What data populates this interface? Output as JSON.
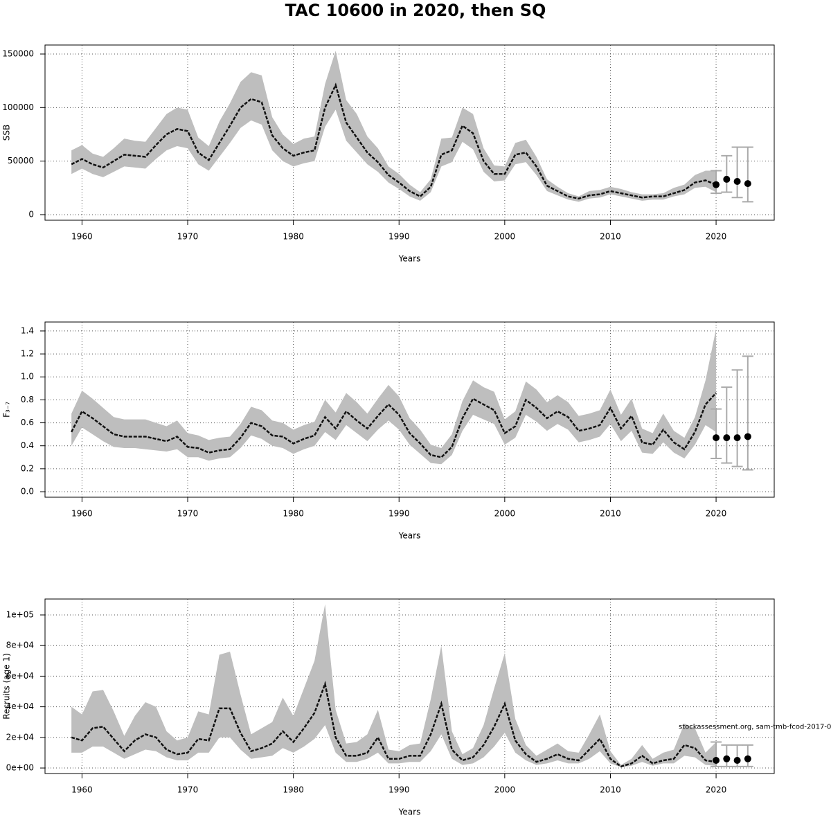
{
  "title": "TAC 10600 in 2020, then SQ",
  "chart_data": [
    {
      "type": "line",
      "ylabel": "SSB",
      "xlabel": "Years",
      "grid": true,
      "xlim": [
        1956.5,
        2025.5
      ],
      "xticks": [
        1960,
        1970,
        1980,
        1990,
        2000,
        2010,
        2020
      ],
      "ylim": [
        -5200,
        158400
      ],
      "yticks": [
        0,
        50000,
        100000,
        150000
      ],
      "band_color": "#bebebe",
      "line_color": "#111111",
      "point_color": "#000000",
      "error_color": "#aaaaaa",
      "x": [
        1959,
        1960,
        1961,
        1962,
        1963,
        1964,
        1965,
        1966,
        1967,
        1968,
        1969,
        1970,
        1971,
        1972,
        1973,
        1974,
        1975,
        1976,
        1977,
        1978,
        1979,
        1980,
        1981,
        1982,
        1983,
        1984,
        1985,
        1986,
        1987,
        1988,
        1989,
        1990,
        1991,
        1992,
        1993,
        1994,
        1995,
        1996,
        1997,
        1998,
        1999,
        2000,
        2001,
        2002,
        2003,
        2004,
        2005,
        2006,
        2007,
        2008,
        2009,
        2010,
        2011,
        2012,
        2013,
        2014,
        2015,
        2016,
        2017,
        2018,
        2019,
        2020
      ],
      "values": [
        47000,
        52000,
        47000,
        44000,
        50000,
        56000,
        55000,
        54000,
        65000,
        75000,
        80000,
        78000,
        58000,
        51000,
        67000,
        83000,
        100000,
        108000,
        105000,
        74000,
        62000,
        55000,
        58000,
        60000,
        100000,
        121000,
        86000,
        72000,
        58000,
        49000,
        37000,
        30000,
        22000,
        17000,
        26000,
        56000,
        60000,
        83000,
        76000,
        50000,
        38000,
        38000,
        56000,
        58000,
        45000,
        27000,
        22000,
        17000,
        15000,
        18000,
        19000,
        22000,
        20000,
        18000,
        16000,
        17000,
        17000,
        20000,
        23000,
        30000,
        32000,
        28000
      ],
      "lower": [
        38000,
        43000,
        38000,
        35000,
        40000,
        45000,
        44000,
        43000,
        52000,
        60000,
        64000,
        62000,
        47000,
        41000,
        54000,
        67000,
        81000,
        88000,
        84000,
        60000,
        50000,
        45000,
        48000,
        50000,
        82000,
        98000,
        69000,
        58000,
        47000,
        40000,
        30000,
        24000,
        17000,
        13000,
        21000,
        45000,
        49000,
        68000,
        61000,
        40000,
        31000,
        32000,
        47000,
        49000,
        37000,
        22000,
        18000,
        14000,
        12000,
        15000,
        16000,
        19000,
        17000,
        15000,
        13000,
        14000,
        14000,
        17000,
        19000,
        25000,
        26000,
        21000
      ],
      "upper": [
        60000,
        65000,
        57000,
        54000,
        62000,
        71000,
        69000,
        68000,
        81000,
        94000,
        100000,
        98000,
        72000,
        64000,
        87000,
        104000,
        124000,
        133000,
        130000,
        91000,
        75000,
        66000,
        71000,
        73000,
        122000,
        153000,
        107000,
        94000,
        73000,
        62000,
        45000,
        38000,
        28000,
        21000,
        33000,
        71000,
        72000,
        100000,
        94000,
        62000,
        46000,
        45000,
        67000,
        70000,
        54000,
        33000,
        26000,
        20000,
        17000,
        22000,
        23000,
        26000,
        24000,
        21000,
        19000,
        19000,
        20000,
        25000,
        28000,
        37000,
        41000,
        41000
      ],
      "forecast": {
        "x": [
          2020,
          2021,
          2022,
          2023
        ],
        "values": [
          28000,
          33000,
          31000,
          29000
        ],
        "lower": [
          20000,
          21000,
          16000,
          12000
        ],
        "upper": [
          41000,
          55000,
          63000,
          63000
        ]
      }
    },
    {
      "type": "line",
      "ylabel": "F₃₋₇",
      "xlabel": "Years",
      "grid": true,
      "xlim": [
        1956.5,
        2025.5
      ],
      "xticks": [
        1960,
        1970,
        1980,
        1990,
        2000,
        2010,
        2020
      ],
      "ylim": [
        -0.048,
        1.478
      ],
      "yticks": [
        {
          "value": 0,
          "label": "0.0"
        },
        0.2,
        0.4,
        0.6,
        0.8,
        {
          "value": 1,
          "label": "1.0"
        },
        1.2,
        1.4
      ],
      "band_color": "#bebebe",
      "line_color": "#111111",
      "point_color": "#000000",
      "error_color": "#aaaaaa",
      "x": [
        1959,
        1960,
        1961,
        1962,
        1963,
        1964,
        1965,
        1966,
        1967,
        1968,
        1969,
        1970,
        1971,
        1972,
        1973,
        1974,
        1975,
        1976,
        1977,
        1978,
        1979,
        1980,
        1981,
        1982,
        1983,
        1984,
        1985,
        1986,
        1987,
        1988,
        1989,
        1990,
        1991,
        1992,
        1993,
        1994,
        1995,
        1996,
        1997,
        1998,
        1999,
        2000,
        2001,
        2002,
        2003,
        2004,
        2005,
        2006,
        2007,
        2008,
        2009,
        2010,
        2011,
        2012,
        2013,
        2014,
        2015,
        2016,
        2017,
        2018,
        2019,
        2020
      ],
      "values": [
        0.52,
        0.7,
        0.64,
        0.57,
        0.5,
        0.48,
        0.48,
        0.48,
        0.46,
        0.44,
        0.48,
        0.39,
        0.38,
        0.34,
        0.36,
        0.37,
        0.47,
        0.6,
        0.57,
        0.49,
        0.48,
        0.42,
        0.46,
        0.49,
        0.65,
        0.55,
        0.7,
        0.62,
        0.55,
        0.66,
        0.76,
        0.67,
        0.51,
        0.42,
        0.32,
        0.3,
        0.39,
        0.64,
        0.81,
        0.76,
        0.71,
        0.51,
        0.57,
        0.8,
        0.73,
        0.64,
        0.7,
        0.65,
        0.53,
        0.55,
        0.58,
        0.73,
        0.55,
        0.66,
        0.43,
        0.41,
        0.54,
        0.43,
        0.37,
        0.52,
        0.76,
        0.86
      ],
      "lower": [
        0.4,
        0.56,
        0.5,
        0.44,
        0.39,
        0.38,
        0.38,
        0.37,
        0.36,
        0.35,
        0.37,
        0.3,
        0.3,
        0.27,
        0.29,
        0.3,
        0.38,
        0.49,
        0.46,
        0.4,
        0.38,
        0.33,
        0.37,
        0.4,
        0.52,
        0.45,
        0.58,
        0.51,
        0.44,
        0.54,
        0.62,
        0.54,
        0.41,
        0.33,
        0.25,
        0.24,
        0.32,
        0.53,
        0.67,
        0.63,
        0.59,
        0.41,
        0.47,
        0.67,
        0.61,
        0.53,
        0.59,
        0.54,
        0.43,
        0.45,
        0.48,
        0.59,
        0.44,
        0.53,
        0.34,
        0.33,
        0.43,
        0.34,
        0.29,
        0.41,
        0.58,
        0.52
      ],
      "upper": [
        0.68,
        0.88,
        0.81,
        0.73,
        0.65,
        0.63,
        0.63,
        0.63,
        0.6,
        0.57,
        0.62,
        0.51,
        0.49,
        0.45,
        0.47,
        0.48,
        0.59,
        0.74,
        0.71,
        0.62,
        0.6,
        0.54,
        0.58,
        0.61,
        0.8,
        0.69,
        0.86,
        0.78,
        0.68,
        0.81,
        0.93,
        0.83,
        0.64,
        0.54,
        0.41,
        0.38,
        0.5,
        0.79,
        0.97,
        0.91,
        0.87,
        0.63,
        0.7,
        0.96,
        0.89,
        0.78,
        0.84,
        0.78,
        0.66,
        0.68,
        0.71,
        0.89,
        0.67,
        0.81,
        0.55,
        0.51,
        0.68,
        0.53,
        0.47,
        0.65,
        0.97,
        1.42
      ],
      "forecast": {
        "x": [
          2020,
          2021,
          2022,
          2023
        ],
        "values": [
          0.47,
          0.47,
          0.47,
          0.48
        ],
        "lower": [
          0.29,
          0.25,
          0.22,
          0.19
        ],
        "upper": [
          0.72,
          0.91,
          1.06,
          1.18
        ]
      }
    },
    {
      "type": "line",
      "ylabel": "Recruits (age 1)",
      "xlabel": "Years",
      "grid": true,
      "annotation": "stockassessment.org, sam-tmb-fcod-2017-0",
      "xlim": [
        1956.5,
        2025.5
      ],
      "xticks": [
        1960,
        1970,
        1980,
        1990,
        2000,
        2010,
        2020
      ],
      "ylim": [
        -3600,
        110400
      ],
      "yticks": [
        {
          "value": 0,
          "label": "0e+00"
        },
        {
          "value": 20000,
          "label": "2e+04"
        },
        {
          "value": 40000,
          "label": "4e+04"
        },
        {
          "value": 60000,
          "label": "6e+04"
        },
        {
          "value": 80000,
          "label": "8e+04"
        },
        {
          "value": 100000,
          "label": "1e+05"
        }
      ],
      "band_color": "#bebebe",
      "line_color": "#111111",
      "point_color": "#000000",
      "error_color": "#aaaaaa",
      "x": [
        1959,
        1960,
        1961,
        1962,
        1963,
        1964,
        1965,
        1966,
        1967,
        1968,
        1969,
        1970,
        1971,
        1972,
        1973,
        1974,
        1975,
        1976,
        1977,
        1978,
        1979,
        1980,
        1981,
        1982,
        1983,
        1984,
        1985,
        1986,
        1987,
        1988,
        1989,
        1990,
        1991,
        1992,
        1993,
        1994,
        1995,
        1996,
        1997,
        1998,
        1999,
        2000,
        2001,
        2002,
        2003,
        2004,
        2005,
        2006,
        2007,
        2008,
        2009,
        2010,
        2011,
        2012,
        2013,
        2014,
        2015,
        2016,
        2017,
        2018,
        2019,
        2020
      ],
      "values": [
        20000,
        18000,
        26000,
        27000,
        19000,
        11000,
        18000,
        22000,
        20000,
        12000,
        9000,
        10000,
        19000,
        18000,
        39000,
        39000,
        23000,
        11000,
        13000,
        16000,
        24000,
        17000,
        26000,
        36000,
        55000,
        20000,
        8000,
        8000,
        10000,
        20000,
        6000,
        6000,
        8000,
        8000,
        22000,
        42000,
        12000,
        5000,
        7000,
        15000,
        27000,
        42000,
        18000,
        9000,
        4000,
        6000,
        9000,
        6000,
        5000,
        12000,
        19000,
        6000,
        1000,
        3000,
        8000,
        3000,
        5000,
        6000,
        15000,
        13000,
        5000,
        4000
      ],
      "lower": [
        10000,
        10000,
        14000,
        14000,
        10000,
        6000,
        9000,
        12000,
        11000,
        7000,
        5000,
        5000,
        10000,
        10000,
        20000,
        20000,
        12000,
        6000,
        7000,
        8000,
        13000,
        10000,
        14000,
        19000,
        28000,
        10000,
        4000,
        4000,
        6000,
        10000,
        3000,
        3000,
        4000,
        4000,
        11000,
        22000,
        6000,
        2000,
        3000,
        7000,
        14000,
        23000,
        10000,
        5000,
        2000,
        3000,
        5000,
        3000,
        3000,
        6000,
        11000,
        3000,
        500,
        1500,
        4000,
        1500,
        3000,
        3000,
        8000,
        7000,
        2000,
        1500
      ],
      "upper": [
        40000,
        35000,
        50000,
        51000,
        37000,
        21000,
        34000,
        43000,
        40000,
        24000,
        18000,
        20000,
        37000,
        35000,
        74000,
        76000,
        48000,
        22000,
        26000,
        30000,
        46000,
        34000,
        52000,
        70000,
        107000,
        38000,
        16000,
        17000,
        22000,
        38000,
        12000,
        11000,
        15000,
        16000,
        45000,
        80000,
        24000,
        9000,
        13000,
        28000,
        52000,
        75000,
        32000,
        15000,
        8000,
        12000,
        16000,
        11000,
        10000,
        22000,
        35000,
        11000,
        2000,
        6000,
        15000,
        6000,
        10000,
        12000,
        29000,
        26000,
        10000,
        17000
      ],
      "forecast": {
        "x": [
          2020,
          2021,
          2022,
          2023
        ],
        "values": [
          5000,
          6000,
          5000,
          6000
        ],
        "lower": [
          1000,
          1000,
          1000,
          1000
        ],
        "upper": [
          17000,
          15000,
          15000,
          15000
        ]
      }
    }
  ]
}
